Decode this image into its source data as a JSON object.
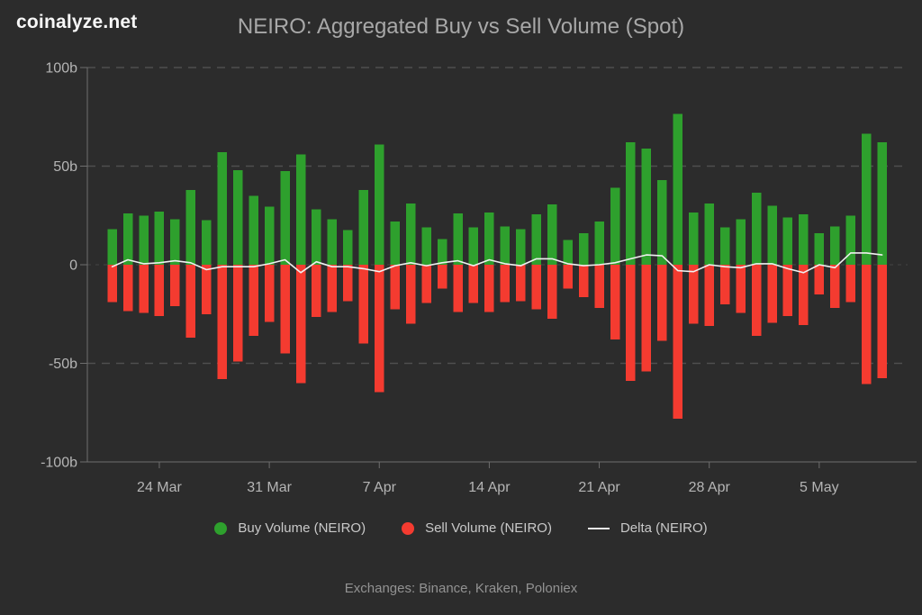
{
  "header": {
    "brand": "coinalyze.net",
    "title": "NEIRO: Aggregated Buy vs Sell Volume (Spot)"
  },
  "colors": {
    "background": "#2c2c2c",
    "buy_green": "#2ea02d",
    "sell_red": "#f43b30",
    "delta_line": "#f0f0f0",
    "grid": "#4f4f4f",
    "axis": "#6e6e6e",
    "axis_text": "#b5b5b5"
  },
  "chart_data": {
    "type": "bar",
    "title": "NEIRO: Aggregated Buy vs Sell Volume (Spot)",
    "unit": "billions",
    "ylim": [
      -100,
      100
    ],
    "grid": "dashed-horizontal",
    "legend_position": "bottom",
    "yticks": [
      100,
      50,
      0,
      -50,
      -100
    ],
    "ytick_labels": [
      "100b",
      "50b",
      "0",
      "-50b",
      "-100b"
    ],
    "x_axis_labels": [
      "24 Mar",
      "31 Mar",
      "7 Apr",
      "14 Apr",
      "21 Apr",
      "28 Apr",
      "5 May"
    ],
    "x_axis_label_indices": [
      3,
      10,
      17,
      24,
      31,
      38,
      45
    ],
    "categories": [
      "21 Mar",
      "22 Mar",
      "23 Mar",
      "24 Mar",
      "25 Mar",
      "26 Mar",
      "27 Mar",
      "28 Mar",
      "29 Mar",
      "30 Mar",
      "31 Mar",
      "1 Apr",
      "2 Apr",
      "3 Apr",
      "4 Apr",
      "5 Apr",
      "6 Apr",
      "7 Apr",
      "8 Apr",
      "9 Apr",
      "10 Apr",
      "11 Apr",
      "12 Apr",
      "13 Apr",
      "14 Apr",
      "15 Apr",
      "16 Apr",
      "17 Apr",
      "18 Apr",
      "19 Apr",
      "20 Apr",
      "21 Apr",
      "22 Apr",
      "23 Apr",
      "24 Apr",
      "25 Apr",
      "26 Apr",
      "27 Apr",
      "28 Apr",
      "29 Apr",
      "30 Apr",
      "1 May",
      "2 May",
      "3 May",
      "4 May",
      "5 May",
      "6 May",
      "7 May",
      "8 May",
      "9 May"
    ],
    "series": [
      {
        "name": "Buy Volume (NEIRO)",
        "type": "bar",
        "color": "#2ea02d",
        "values": [
          18,
          26,
          25,
          27,
          23,
          38,
          22.5,
          57,
          48,
          35,
          29.5,
          47.5,
          56,
          28,
          23,
          17.5,
          38,
          61,
          22,
          31,
          19,
          13,
          26,
          19,
          26.5,
          19.5,
          18,
          25.5,
          30.5,
          12.5,
          16,
          22,
          39,
          62,
          59,
          43,
          76.5,
          26.5,
          31,
          19,
          23,
          36.5,
          30,
          24,
          25.5,
          16,
          19.5,
          25,
          66.5,
          62
        ]
      },
      {
        "name": "Sell Volume (NEIRO)",
        "type": "bar",
        "color": "#f43b30",
        "values": [
          -19,
          -23.5,
          -24.5,
          -26,
          -21,
          -37,
          -25,
          -58,
          -49,
          -36,
          -29,
          -45,
          -60,
          -26.5,
          -24,
          -18.5,
          -40,
          -64.5,
          -22.5,
          -30,
          -19.5,
          -12,
          -24,
          -19.5,
          -24,
          -19,
          -18.5,
          -22.5,
          -27.5,
          -12,
          -16.5,
          -22,
          -38,
          -59,
          -54,
          -38.5,
          -78,
          -30,
          -31,
          -20,
          -24.5,
          -36,
          -29.5,
          -26,
          -30.5,
          -15,
          -22,
          -19,
          -60.5,
          -57.5
        ]
      },
      {
        "name": "Delta (NEIRO)",
        "type": "line",
        "color": "#f0f0f0",
        "values": [
          -1,
          2.5,
          0.5,
          1,
          2,
          1,
          -2.5,
          -1,
          -1,
          -1,
          0.5,
          2.5,
          -4,
          1.5,
          -1,
          -1,
          -2,
          -3.5,
          -0.5,
          1,
          -0.5,
          1,
          2,
          -0.5,
          2.5,
          0.5,
          -0.5,
          3,
          3,
          0.5,
          -0.5,
          0,
          1,
          3,
          5,
          4.5,
          -3,
          -3.5,
          0,
          -1,
          -1.5,
          0.5,
          0.5,
          -2,
          -4,
          0,
          -1.5,
          6,
          6,
          5
        ]
      }
    ]
  },
  "legend": {
    "items": [
      {
        "label": "Buy Volume (NEIRO)",
        "marker": "circle",
        "color": "#2ea02d"
      },
      {
        "label": "Sell Volume (NEIRO)",
        "marker": "circle",
        "color": "#f43b30"
      },
      {
        "label": "Delta (NEIRO)",
        "marker": "line",
        "color": "#e8e8e8"
      }
    ]
  },
  "footer": {
    "exchanges": "Exchanges: Binance, Kraken, Poloniex"
  }
}
